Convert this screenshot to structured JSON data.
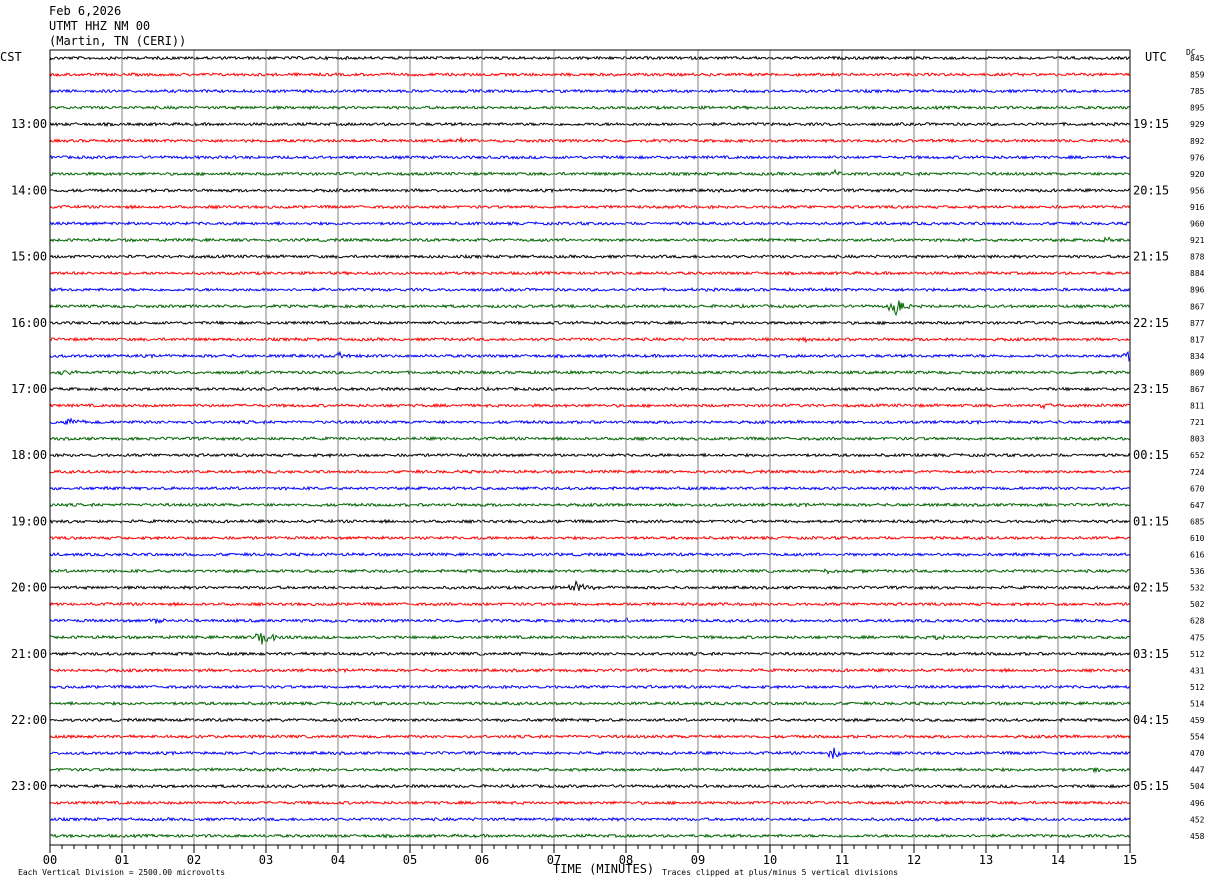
{
  "header": {
    "date": "Feb 6,2026",
    "station": "UTMT HHZ NM 00",
    "location": "(Martin, TN (CERI))"
  },
  "left_timezone": "CST",
  "right_timezone": "UTC",
  "dc_label": "DC",
  "xaxis_title": "TIME (MINUTES)",
  "footer_left": "Each Vertical Division = 2500.00 microvolts",
  "footer_right": "Traces clipped at plus/minus 5 vertical divisions",
  "chart_data": {
    "type": "line",
    "title": "UTMT HHZ NM 00",
    "xlabel": "TIME (MINUTES)",
    "xlim": [
      0,
      15
    ],
    "x_ticks": [
      "00",
      "01",
      "02",
      "03",
      "04",
      "05",
      "06",
      "07",
      "08",
      "09",
      "10",
      "11",
      "12",
      "13",
      "14",
      "15"
    ],
    "trace_minutes": 15,
    "trace_colors": [
      "#000000",
      "#ff0000",
      "#0000ff",
      "#006400"
    ],
    "left_hour_labels": [
      "13:00",
      "14:00",
      "15:00",
      "16:00",
      "17:00",
      "18:00",
      "19:00",
      "20:00",
      "21:00",
      "22:00",
      "23:00"
    ],
    "right_hour_labels": [
      "19:15",
      "20:15",
      "21:15",
      "22:15",
      "23:15",
      "00:15",
      "01:15",
      "02:15",
      "03:15",
      "04:15",
      "05:15"
    ],
    "dc_offsets": [
      845,
      859,
      785,
      895,
      929,
      892,
      976,
      920,
      956,
      916,
      960,
      921,
      878,
      884,
      896,
      867,
      877,
      817,
      834,
      809,
      867,
      811,
      721,
      803,
      652,
      724,
      670,
      647,
      685,
      610,
      616,
      536,
      532,
      502,
      628,
      475,
      512,
      431,
      512,
      514,
      459,
      554,
      470,
      447,
      504,
      496,
      452,
      458
    ],
    "events": [
      {
        "trace": 5,
        "minute": 5.7,
        "amp": 0.8
      },
      {
        "trace": 7,
        "minute": 10.9,
        "amp": 0.8
      },
      {
        "trace": 11,
        "minute": 14.6,
        "amp": 1.1
      },
      {
        "trace": 15,
        "minute": 11.7,
        "amp": 2.8
      },
      {
        "trace": 17,
        "minute": 10.5,
        "amp": 0.6
      },
      {
        "trace": 18,
        "minute": 4.0,
        "amp": 0.7
      },
      {
        "trace": 18,
        "minute": 14.95,
        "amp": 2.0
      },
      {
        "trace": 19,
        "minute": 0.1,
        "amp": 1.1
      },
      {
        "trace": 21,
        "minute": 13.8,
        "amp": 0.9
      },
      {
        "trace": 22,
        "minute": 0.2,
        "amp": 1.1
      },
      {
        "trace": 31,
        "minute": 10.8,
        "amp": 0.5
      },
      {
        "trace": 32,
        "minute": 7.25,
        "amp": 2.2
      },
      {
        "trace": 34,
        "minute": 1.4,
        "amp": 0.9
      },
      {
        "trace": 34,
        "minute": 8.0,
        "amp": 0.6
      },
      {
        "trace": 35,
        "minute": 2.9,
        "amp": 2.8
      },
      {
        "trace": 35,
        "minute": 12.3,
        "amp": 0.6
      },
      {
        "trace": 42,
        "minute": 10.85,
        "amp": 2.2
      },
      {
        "trace": 43,
        "minute": 14.5,
        "amp": 0.8
      }
    ]
  }
}
